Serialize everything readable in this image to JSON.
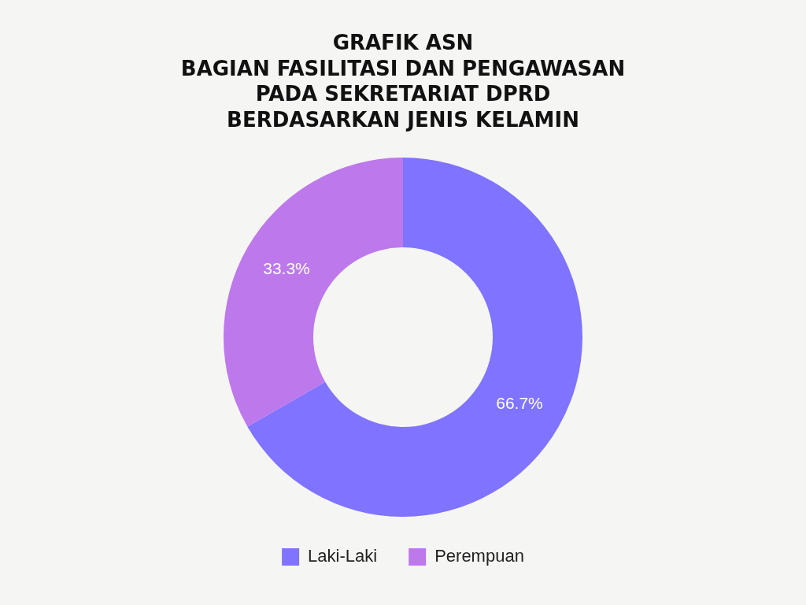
{
  "chart_data": {
    "type": "donut",
    "title": "GRAFIK ASN\nBAGIAN FASILITASI DAN PENGAWASAN\nPADA SEKRETARIAT DPRD\nBERDASARKAN JENIS KELAMIN",
    "categories": [
      "Laki-Laki",
      "Perempuan"
    ],
    "values": [
      66.7,
      33.3
    ],
    "value_labels": [
      "66.7%",
      "33.3%"
    ],
    "colors": [
      "#7f73ff",
      "#bd78ec"
    ],
    "legend": "bottom"
  }
}
